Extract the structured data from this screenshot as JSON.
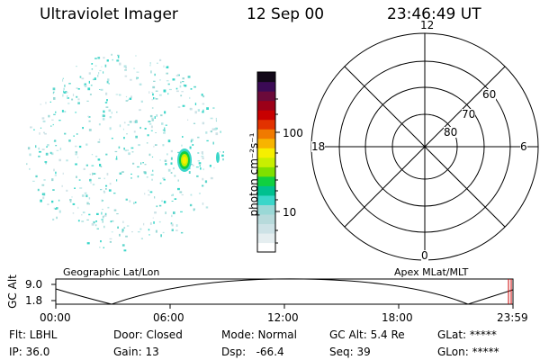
{
  "header": {
    "instrument": "Ultraviolet Imager",
    "date": "12 Sep 00",
    "time": "23:46:49 UT"
  },
  "colorbar": {
    "unit_label": "photon cm⁻²s⁻¹",
    "ticks": [
      "100",
      "10"
    ],
    "colors": [
      "#ffffff",
      "#e5eef0",
      "#cde2e6",
      "#b7dadb",
      "#9ad8d6",
      "#3ad6c9",
      "#00c08f",
      "#10d040",
      "#7fe000",
      "#c8ef00",
      "#f6ef00",
      "#f7b400",
      "#f07a00",
      "#e23200",
      "#c80000",
      "#9c0018",
      "#6b0a3a",
      "#3b0a55",
      "#120818"
    ]
  },
  "polar_plot": {
    "mlt_labels": [
      "12",
      "18",
      "6",
      "0"
    ],
    "lat_labels": [
      "60",
      "70",
      "80"
    ]
  },
  "timeline": {
    "left_title": "Geographic Lat/Lon",
    "right_title": "Apex MLat/MLT",
    "y_axis_label": "GC Alt",
    "y_ticks": [
      "9.0",
      "1.8"
    ],
    "x_ticks": [
      "00:00",
      "06:00",
      "12:00",
      "18:00",
      "23:59"
    ],
    "marker_color": "#cc0000"
  },
  "status": {
    "filter": "Flt: LBHL",
    "door": "Door: Closed",
    "mode": "Mode: Normal",
    "gc_alt": "GC Alt: 5.4 Re",
    "glat": "GLat: *****",
    "ip": "IP: 36.0",
    "gain": "Gain: 13",
    "dsp": "Dsp:   -66.4",
    "seq": "Seq: 39",
    "glon": "GLon: *****"
  }
}
